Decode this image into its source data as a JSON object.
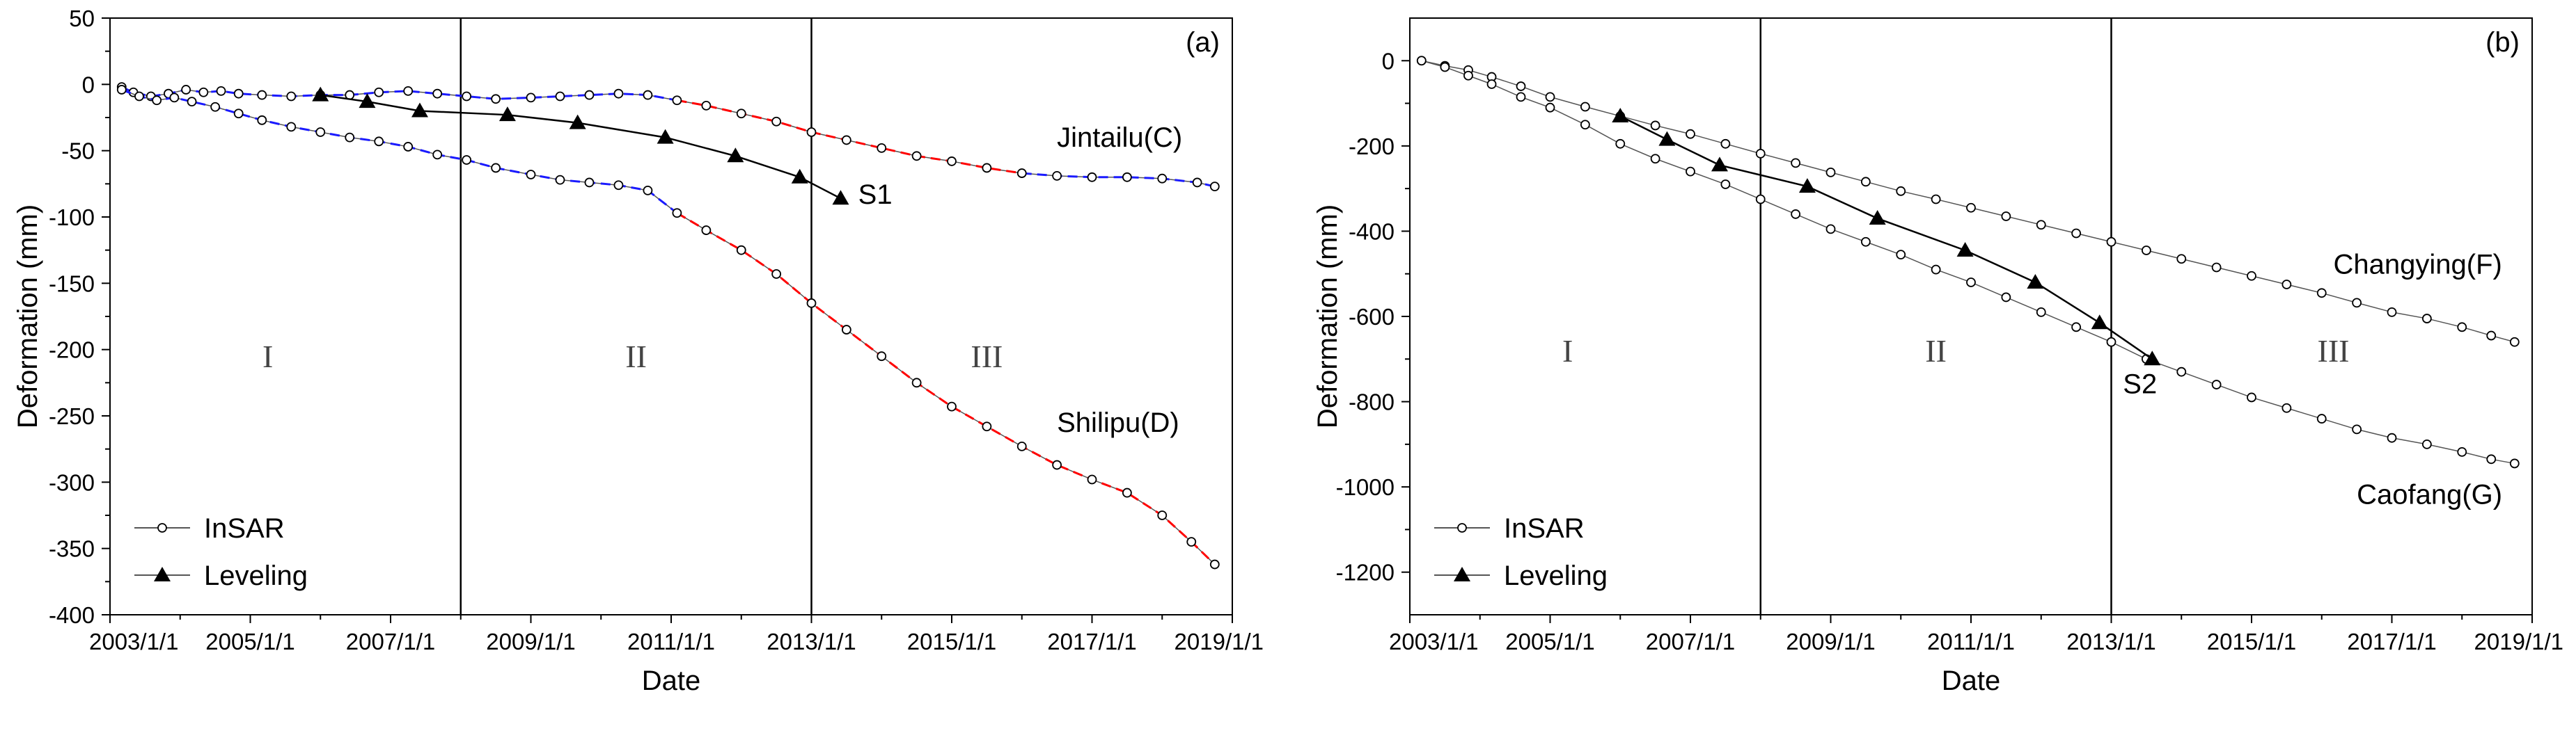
{
  "chart_data": [
    {
      "panel_label": "(a)",
      "type": "scatter",
      "xlabel": "Date",
      "ylabel": "Deformation (mm)",
      "xlim": [
        "2003/1/1",
        "2019/1/1"
      ],
      "ylim": [
        -400,
        50
      ],
      "x_ticks": [
        "2003/1/1",
        "2005/1/1",
        "2007/1/1",
        "2009/1/1",
        "2011/1/1",
        "2013/1/1",
        "2015/1/1",
        "2017/1/1",
        "2019/1/1"
      ],
      "y_ticks": [
        50,
        0,
        -50,
        -100,
        -150,
        -200,
        -250,
        -300,
        -350,
        -400
      ],
      "period_dividers": [
        "2008/1/1",
        "2013/1/1"
      ],
      "periods": [
        {
          "label": "I",
          "x": "2005/4/1",
          "y": -205
        },
        {
          "label": "II",
          "x": "2010/7/1",
          "y": -205
        },
        {
          "label": "III",
          "x": "2015/7/1",
          "y": -205
        }
      ],
      "legend": {
        "position": "bottom-left",
        "entries": [
          {
            "label": "InSAR",
            "marker": "open-circle"
          },
          {
            "label": "Leveling",
            "marker": "filled-triangle"
          }
        ]
      },
      "annotations": [
        {
          "text": "Jintailu(C)",
          "x": "2016/7/1",
          "y": -47
        },
        {
          "text": "Shilipu(D)",
          "x": "2016/7/1",
          "y": -262
        },
        {
          "text": "S1",
          "x": "2013/9/1",
          "y": -90
        }
      ],
      "series": [
        {
          "name": "InSAR",
          "label": "Jintailu(C)",
          "marker": "open-circle",
          "fit": [
            {
              "color": "#1a1aff",
              "from": "2003/1/1",
              "to": "2011/1/1"
            },
            {
              "color": "#ff0000",
              "from": "2011/1/1",
              "to": "2016/1/1"
            },
            {
              "color": "#1a1aff",
              "from": "2016/1/1",
              "to": "2018/10/1"
            }
          ],
          "points": [
            [
              "2003/3/1",
              -2
            ],
            [
              "2003/5/1",
              -6
            ],
            [
              "2003/8/1",
              -9
            ],
            [
              "2003/11/1",
              -7
            ],
            [
              "2004/2/1",
              -4
            ],
            [
              "2004/5/1",
              -6
            ],
            [
              "2004/8/1",
              -5
            ],
            [
              "2004/11/1",
              -7
            ],
            [
              "2005/3/1",
              -8
            ],
            [
              "2005/8/1",
              -9
            ],
            [
              "2006/1/1",
              -8
            ],
            [
              "2006/6/1",
              -8
            ],
            [
              "2006/11/1",
              -6
            ],
            [
              "2007/4/1",
              -5
            ],
            [
              "2007/9/1",
              -7
            ],
            [
              "2008/2/1",
              -9
            ],
            [
              "2008/7/1",
              -11
            ],
            [
              "2009/1/1",
              -10
            ],
            [
              "2009/6/1",
              -9
            ],
            [
              "2009/11/1",
              -8
            ],
            [
              "2010/4/1",
              -7
            ],
            [
              "2010/9/1",
              -8
            ],
            [
              "2011/2/1",
              -12
            ],
            [
              "2011/7/1",
              -16
            ],
            [
              "2012/1/1",
              -22
            ],
            [
              "2012/7/1",
              -28
            ],
            [
              "2013/1/1",
              -36
            ],
            [
              "2013/7/1",
              -42
            ],
            [
              "2014/1/1",
              -48
            ],
            [
              "2014/7/1",
              -54
            ],
            [
              "2015/1/1",
              -58
            ],
            [
              "2015/7/1",
              -63
            ],
            [
              "2016/1/1",
              -67
            ],
            [
              "2016/7/1",
              -69
            ],
            [
              "2017/1/1",
              -70
            ],
            [
              "2017/7/1",
              -70
            ],
            [
              "2018/1/1",
              -71
            ],
            [
              "2018/7/1",
              -74
            ],
            [
              "2018/10/1",
              -77
            ]
          ]
        },
        {
          "name": "InSAR",
          "label": "Shilipu(D)",
          "marker": "open-circle",
          "fit": [
            {
              "color": "#1a1aff",
              "from": "2003/1/1",
              "to": "2011/1/1"
            },
            {
              "color": "#ff0000",
              "from": "2011/1/1",
              "to": "2018/10/1"
            }
          ],
          "points": [
            [
              "2003/3/1",
              -4
            ],
            [
              "2003/6/1",
              -9
            ],
            [
              "2003/9/1",
              -12
            ],
            [
              "2003/12/1",
              -10
            ],
            [
              "2004/3/1",
              -13
            ],
            [
              "2004/7/1",
              -17
            ],
            [
              "2004/11/1",
              -22
            ],
            [
              "2005/3/1",
              -27
            ],
            [
              "2005/8/1",
              -32
            ],
            [
              "2006/1/1",
              -36
            ],
            [
              "2006/6/1",
              -40
            ],
            [
              "2006/11/1",
              -43
            ],
            [
              "2007/4/1",
              -47
            ],
            [
              "2007/9/1",
              -53
            ],
            [
              "2008/2/1",
              -57
            ],
            [
              "2008/7/1",
              -63
            ],
            [
              "2009/1/1",
              -68
            ],
            [
              "2009/6/1",
              -72
            ],
            [
              "2009/11/1",
              -74
            ],
            [
              "2010/4/1",
              -76
            ],
            [
              "2010/9/1",
              -80
            ],
            [
              "2011/2/1",
              -97
            ],
            [
              "2011/7/1",
              -110
            ],
            [
              "2012/1/1",
              -125
            ],
            [
              "2012/7/1",
              -143
            ],
            [
              "2013/1/1",
              -165
            ],
            [
              "2013/7/1",
              -185
            ],
            [
              "2014/1/1",
              -205
            ],
            [
              "2014/7/1",
              -225
            ],
            [
              "2015/1/1",
              -243
            ],
            [
              "2015/7/1",
              -258
            ],
            [
              "2016/1/1",
              -273
            ],
            [
              "2016/7/1",
              -287
            ],
            [
              "2017/1/1",
              -298
            ],
            [
              "2017/7/1",
              -308
            ],
            [
              "2018/1/1",
              -325
            ],
            [
              "2018/6/1",
              -345
            ],
            [
              "2018/10/1",
              -362
            ]
          ]
        },
        {
          "name": "Leveling",
          "label": "S1",
          "marker": "filled-triangle",
          "points": [
            [
              "2006/1/1",
              -8
            ],
            [
              "2006/9/1",
              -13
            ],
            [
              "2007/6/1",
              -20
            ],
            [
              "2008/9/1",
              -23
            ],
            [
              "2009/9/1",
              -29
            ],
            [
              "2010/12/1",
              -40
            ],
            [
              "2011/12/1",
              -54
            ],
            [
              "2012/11/1",
              -70
            ],
            [
              "2013/6/1",
              -86
            ]
          ]
        }
      ]
    },
    {
      "panel_label": "(b)",
      "type": "scatter",
      "xlabel": "Date",
      "ylabel": "Deformation (mm)",
      "xlim": [
        "2003/1/1",
        "2019/1/1"
      ],
      "ylim": [
        -1300,
        100
      ],
      "x_ticks": [
        "2003/1/1",
        "2005/1/1",
        "2007/1/1",
        "2009/1/1",
        "2011/1/1",
        "2013/1/1",
        "2015/1/1",
        "2017/1/1",
        "2019/1/1"
      ],
      "y_ticks": [
        0,
        -200,
        -400,
        -600,
        -800,
        -1000,
        -1200
      ],
      "period_dividers": [
        "2008/1/1",
        "2013/1/1"
      ],
      "periods": [
        {
          "label": "I",
          "x": "2005/4/1",
          "y": -680
        },
        {
          "label": "II",
          "x": "2010/7/1",
          "y": -680
        },
        {
          "label": "III",
          "x": "2016/3/1",
          "y": -680
        }
      ],
      "legend": {
        "position": "bottom-left",
        "entries": [
          {
            "label": "InSAR",
            "marker": "open-circle"
          },
          {
            "label": "Leveling",
            "marker": "filled-triangle"
          }
        ]
      },
      "annotations": [
        {
          "text": "Changying(F)",
          "x": "2016/3/1",
          "y": -500
        },
        {
          "text": "Caofang(G)",
          "x": "2016/7/1",
          "y": -1040
        },
        {
          "text": "S2",
          "x": "2013/3/1",
          "y": -780
        }
      ],
      "series": [
        {
          "name": "InSAR",
          "label": "Changying(F)",
          "marker": "open-circle",
          "points": [
            [
              "2003/3/1",
              0
            ],
            [
              "2003/7/1",
              -12
            ],
            [
              "2003/11/1",
              -22
            ],
            [
              "2004/3/1",
              -38
            ],
            [
              "2004/8/1",
              -60
            ],
            [
              "2005/1/1",
              -85
            ],
            [
              "2005/7/1",
              -108
            ],
            [
              "2006/1/1",
              -130
            ],
            [
              "2006/7/1",
              -152
            ],
            [
              "2007/1/1",
              -172
            ],
            [
              "2007/7/1",
              -195
            ],
            [
              "2008/1/1",
              -218
            ],
            [
              "2008/7/1",
              -240
            ],
            [
              "2009/1/1",
              -262
            ],
            [
              "2009/7/1",
              -284
            ],
            [
              "2010/1/1",
              -306
            ],
            [
              "2010/7/1",
              -325
            ],
            [
              "2011/1/1",
              -345
            ],
            [
              "2011/7/1",
              -365
            ],
            [
              "2012/1/1",
              -385
            ],
            [
              "2012/7/1",
              -405
            ],
            [
              "2013/1/1",
              -425
            ],
            [
              "2013/7/1",
              -445
            ],
            [
              "2014/1/1",
              -465
            ],
            [
              "2014/7/1",
              -485
            ],
            [
              "2015/1/1",
              -505
            ],
            [
              "2015/7/1",
              -525
            ],
            [
              "2016/1/1",
              -545
            ],
            [
              "2016/7/1",
              -568
            ],
            [
              "2017/1/1",
              -590
            ],
            [
              "2017/7/1",
              -605
            ],
            [
              "2018/1/1",
              -625
            ],
            [
              "2018/6/1",
              -645
            ],
            [
              "2018/10/1",
              -660
            ]
          ]
        },
        {
          "name": "InSAR",
          "label": "Caofang(G)",
          "marker": "open-circle",
          "points": [
            [
              "2003/3/1",
              0
            ],
            [
              "2003/7/1",
              -15
            ],
            [
              "2003/11/1",
              -35
            ],
            [
              "2004/3/1",
              -55
            ],
            [
              "2004/8/1",
              -85
            ],
            [
              "2005/1/1",
              -110
            ],
            [
              "2005/7/1",
              -150
            ],
            [
              "2006/1/1",
              -195
            ],
            [
              "2006/7/1",
              -230
            ],
            [
              "2007/1/1",
              -260
            ],
            [
              "2007/7/1",
              -290
            ],
            [
              "2008/1/1",
              -325
            ],
            [
              "2008/7/1",
              -360
            ],
            [
              "2009/1/1",
              -395
            ],
            [
              "2009/7/1",
              -425
            ],
            [
              "2010/1/1",
              -455
            ],
            [
              "2010/7/1",
              -490
            ],
            [
              "2011/1/1",
              -520
            ],
            [
              "2011/7/1",
              -555
            ],
            [
              "2012/1/1",
              -590
            ],
            [
              "2012/7/1",
              -625
            ],
            [
              "2013/1/1",
              -660
            ],
            [
              "2013/7/1",
              -700
            ],
            [
              "2014/1/1",
              -730
            ],
            [
              "2014/7/1",
              -760
            ],
            [
              "2015/1/1",
              -790
            ],
            [
              "2015/7/1",
              -815
            ],
            [
              "2016/1/1",
              -840
            ],
            [
              "2016/7/1",
              -865
            ],
            [
              "2017/1/1",
              -885
            ],
            [
              "2017/7/1",
              -900
            ],
            [
              "2018/1/1",
              -918
            ],
            [
              "2018/6/1",
              -935
            ],
            [
              "2018/10/1",
              -945
            ]
          ]
        },
        {
          "name": "Leveling",
          "label": "S2",
          "marker": "filled-triangle",
          "points": [
            [
              "2006/1/1",
              -130
            ],
            [
              "2006/9/1",
              -185
            ],
            [
              "2007/6/1",
              -245
            ],
            [
              "2008/9/1",
              -295
            ],
            [
              "2009/9/1",
              -370
            ],
            [
              "2010/12/1",
              -445
            ],
            [
              "2011/12/1",
              -520
            ],
            [
              "2012/11/1",
              -615
            ],
            [
              "2013/8/1",
              -700
            ]
          ]
        }
      ]
    }
  ]
}
